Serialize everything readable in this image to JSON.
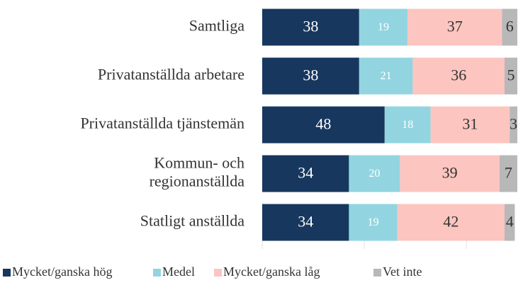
{
  "chart_data": {
    "type": "stacked_barh",
    "categories": [
      "Samtliga",
      "Privatanställda arbetare",
      "Privatanställda tjänstemän",
      "Kommun- och\nregionanställda",
      "Statligt anställda"
    ],
    "series": [
      {
        "name": "Mycket/ganska hög",
        "color": "#17375e",
        "values": [
          38,
          38,
          48,
          34,
          34
        ]
      },
      {
        "name": "Medel",
        "color": "#92d5e0",
        "values": [
          19,
          21,
          18,
          20,
          19
        ]
      },
      {
        "name": "Mycket/ganska låg",
        "color": "#fcc5c0",
        "values": [
          37,
          36,
          31,
          39,
          42
        ]
      },
      {
        "name": "Vet inte",
        "color": "#b8b8b8",
        "values": [
          6,
          5,
          3,
          7,
          4
        ]
      }
    ],
    "xlim": [
      0,
      100
    ],
    "legend": "bottom"
  }
}
